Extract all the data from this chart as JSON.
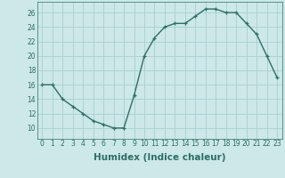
{
  "xlabel": "Humidex (Indice chaleur)",
  "ylabel": "",
  "x": [
    0,
    1,
    2,
    3,
    4,
    5,
    6,
    7,
    8,
    9,
    10,
    11,
    12,
    13,
    14,
    15,
    16,
    17,
    18,
    19,
    20,
    21,
    22,
    23
  ],
  "y": [
    16,
    16,
    14,
    13,
    12,
    11,
    10.5,
    10,
    10,
    14.5,
    20,
    22.5,
    24,
    24.5,
    24.5,
    25.5,
    26.5,
    26.5,
    26,
    26,
    24.5,
    23,
    20,
    17
  ],
  "line_color": "#2e6e65",
  "marker": "+",
  "markersize": 3.5,
  "linewidth": 1.0,
  "background_color": "#cce8e8",
  "grid_color": "#aacece",
  "xlim": [
    -0.5,
    23.5
  ],
  "ylim": [
    8.5,
    27.5
  ],
  "yticks": [
    10,
    12,
    14,
    16,
    18,
    20,
    22,
    24,
    26
  ],
  "xticks": [
    0,
    1,
    2,
    3,
    4,
    5,
    6,
    7,
    8,
    9,
    10,
    11,
    12,
    13,
    14,
    15,
    16,
    17,
    18,
    19,
    20,
    21,
    22,
    23
  ],
  "xtick_labels": [
    "0",
    "1",
    "2",
    "3",
    "4",
    "5",
    "6",
    "7",
    "8",
    "9",
    "10",
    "11",
    "12",
    "13",
    "14",
    "15",
    "16",
    "17",
    "18",
    "19",
    "20",
    "21",
    "22",
    "23"
  ],
  "tick_fontsize": 5.5,
  "xlabel_fontsize": 7.5,
  "label_color": "#2e6e65"
}
